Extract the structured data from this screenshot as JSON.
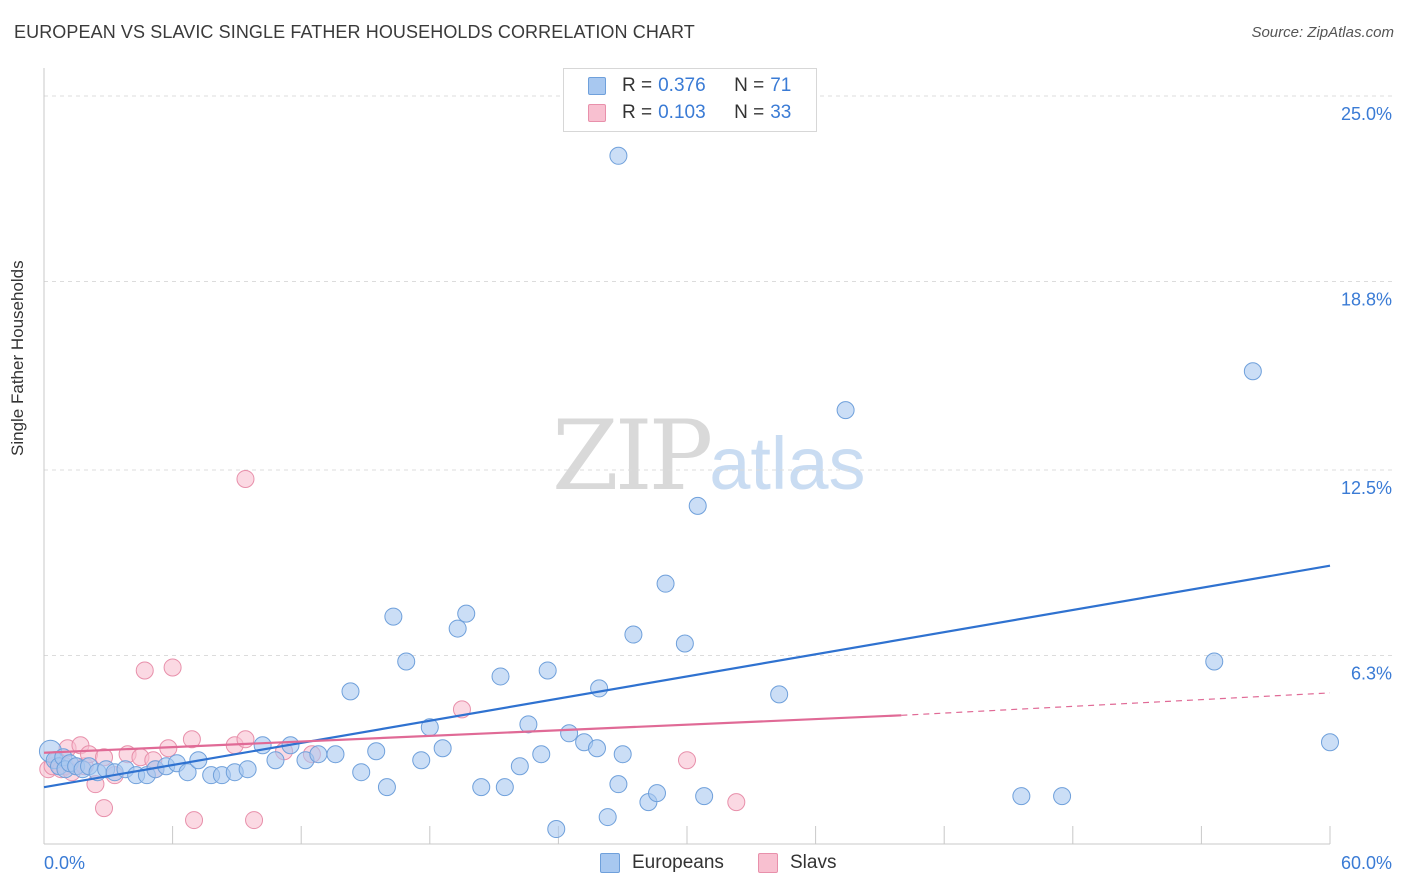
{
  "title": "EUROPEAN VS SLAVIC SINGLE FATHER HOUSEHOLDS CORRELATION CHART",
  "source": "Source: ZipAtlas.com",
  "watermark": {
    "zip": "ZIP",
    "atlas": "atlas"
  },
  "legend_top": {
    "rows": [
      {
        "r_label": "R = ",
        "r_value": "0.376",
        "n_label": "N = ",
        "n_value": "71",
        "color": "#a8c8f0",
        "border": "#6fa0db"
      },
      {
        "r_label": "R = ",
        "r_value": "0.103",
        "n_label": "N = ",
        "n_value": "33",
        "color": "#f8c0d0",
        "border": "#e890ab"
      }
    ]
  },
  "colors": {
    "europeans_fill": "#a8c8f0",
    "europeans_stroke": "#6fa0db",
    "europeans_line": "#2f72d0",
    "slavs_fill": "#f8c0d0",
    "slavs_stroke": "#e890ab",
    "slavs_line": "#e06a96",
    "axis_text": "#3a7bd5",
    "grid": "#dcdcdc"
  },
  "chart_data": {
    "type": "scatter",
    "title": "EUROPEAN VS SLAVIC SINGLE FATHER HOUSEHOLDS CORRELATION CHART",
    "xlabel": "",
    "ylabel": "Single Father Households",
    "xlim": [
      0,
      60
    ],
    "ylim": [
      0,
      25.6
    ],
    "x_tick_labels": [
      "0.0%",
      "60.0%"
    ],
    "y_ticks": [
      6.3,
      12.5,
      18.8,
      25.0
    ],
    "y_tick_labels": [
      "6.3%",
      "12.5%",
      "18.8%",
      "25.0%"
    ],
    "grid": true,
    "legend_position": "bottom-center",
    "series": [
      {
        "name": "Europeans",
        "points": [
          [
            0.3,
            3.1
          ],
          [
            0.5,
            2.8
          ],
          [
            0.7,
            2.6
          ],
          [
            0.9,
            2.9
          ],
          [
            1.0,
            2.5
          ],
          [
            1.2,
            2.7
          ],
          [
            1.5,
            2.6
          ],
          [
            1.8,
            2.5
          ],
          [
            2.1,
            2.6
          ],
          [
            2.5,
            2.4
          ],
          [
            2.9,
            2.5
          ],
          [
            3.3,
            2.4
          ],
          [
            3.8,
            2.5
          ],
          [
            4.3,
            2.3
          ],
          [
            4.8,
            2.3
          ],
          [
            5.2,
            2.5
          ],
          [
            5.7,
            2.6
          ],
          [
            6.2,
            2.7
          ],
          [
            6.7,
            2.4
          ],
          [
            7.2,
            2.8
          ],
          [
            7.8,
            2.3
          ],
          [
            8.3,
            2.3
          ],
          [
            8.9,
            2.4
          ],
          [
            9.5,
            2.5
          ],
          [
            10.2,
            3.3
          ],
          [
            10.8,
            2.8
          ],
          [
            11.5,
            3.3
          ],
          [
            12.2,
            2.8
          ],
          [
            12.8,
            3.0
          ],
          [
            13.6,
            3.0
          ],
          [
            14.3,
            5.1
          ],
          [
            14.8,
            2.4
          ],
          [
            15.5,
            3.1
          ],
          [
            16.0,
            1.9
          ],
          [
            16.3,
            7.6
          ],
          [
            16.9,
            6.1
          ],
          [
            17.6,
            2.8
          ],
          [
            18.0,
            3.9
          ],
          [
            18.6,
            3.2
          ],
          [
            19.3,
            7.2
          ],
          [
            19.7,
            7.7
          ],
          [
            20.4,
            1.9
          ],
          [
            21.3,
            5.6
          ],
          [
            21.5,
            1.9
          ],
          [
            22.2,
            2.6
          ],
          [
            22.6,
            4.0
          ],
          [
            23.2,
            3.0
          ],
          [
            23.5,
            5.8
          ],
          [
            23.9,
            0.5
          ],
          [
            24.5,
            3.7
          ],
          [
            25.2,
            3.4
          ],
          [
            25.8,
            3.2
          ],
          [
            25.9,
            5.2
          ],
          [
            26.3,
            0.9
          ],
          [
            26.8,
            2.0
          ],
          [
            26.8,
            23.0
          ],
          [
            27.0,
            3.0
          ],
          [
            27.5,
            7.0
          ],
          [
            28.2,
            1.4
          ],
          [
            28.6,
            1.7
          ],
          [
            29.0,
            8.7
          ],
          [
            29.9,
            6.7
          ],
          [
            30.5,
            11.3
          ],
          [
            30.8,
            1.6
          ],
          [
            34.3,
            5.0
          ],
          [
            37.4,
            14.5
          ],
          [
            45.6,
            1.6
          ],
          [
            47.5,
            1.6
          ],
          [
            54.6,
            6.1
          ],
          [
            56.4,
            15.8
          ],
          [
            60.0,
            3.4
          ]
        ],
        "trend": {
          "x0": 0,
          "y0": 1.9,
          "x1": 60,
          "y1": 9.3
        }
      },
      {
        "name": "Slavs",
        "points": [
          [
            0.2,
            2.5
          ],
          [
            0.4,
            2.6
          ],
          [
            0.6,
            2.8
          ],
          [
            0.8,
            2.5
          ],
          [
            1.0,
            2.6
          ],
          [
            1.1,
            3.2
          ],
          [
            1.3,
            2.4
          ],
          [
            1.5,
            2.6
          ],
          [
            1.7,
            3.3
          ],
          [
            1.9,
            2.6
          ],
          [
            2.1,
            3.0
          ],
          [
            2.4,
            2.0
          ],
          [
            2.8,
            1.2
          ],
          [
            2.8,
            2.9
          ],
          [
            3.3,
            2.3
          ],
          [
            3.9,
            3.0
          ],
          [
            4.5,
            2.9
          ],
          [
            5.1,
            2.8
          ],
          [
            4.7,
            5.8
          ],
          [
            5.8,
            3.2
          ],
          [
            6.0,
            5.9
          ],
          [
            5.2,
            2.5
          ],
          [
            6.9,
            3.5
          ],
          [
            7.0,
            0.8
          ],
          [
            8.9,
            3.3
          ],
          [
            9.4,
            12.2
          ],
          [
            9.4,
            3.5
          ],
          [
            9.8,
            0.8
          ],
          [
            11.2,
            3.1
          ],
          [
            12.5,
            3.0
          ],
          [
            19.5,
            4.5
          ],
          [
            30.0,
            2.8
          ],
          [
            32.3,
            1.4
          ]
        ],
        "trend": {
          "x0": 0,
          "y0": 3.05,
          "x1": 40,
          "y1": 4.3
        },
        "trend_extension": {
          "x0": 40,
          "y0": 4.3,
          "x1": 60,
          "y1": 5.05
        }
      }
    ]
  },
  "bottom_legend": [
    "Europeans",
    "Slavs"
  ]
}
